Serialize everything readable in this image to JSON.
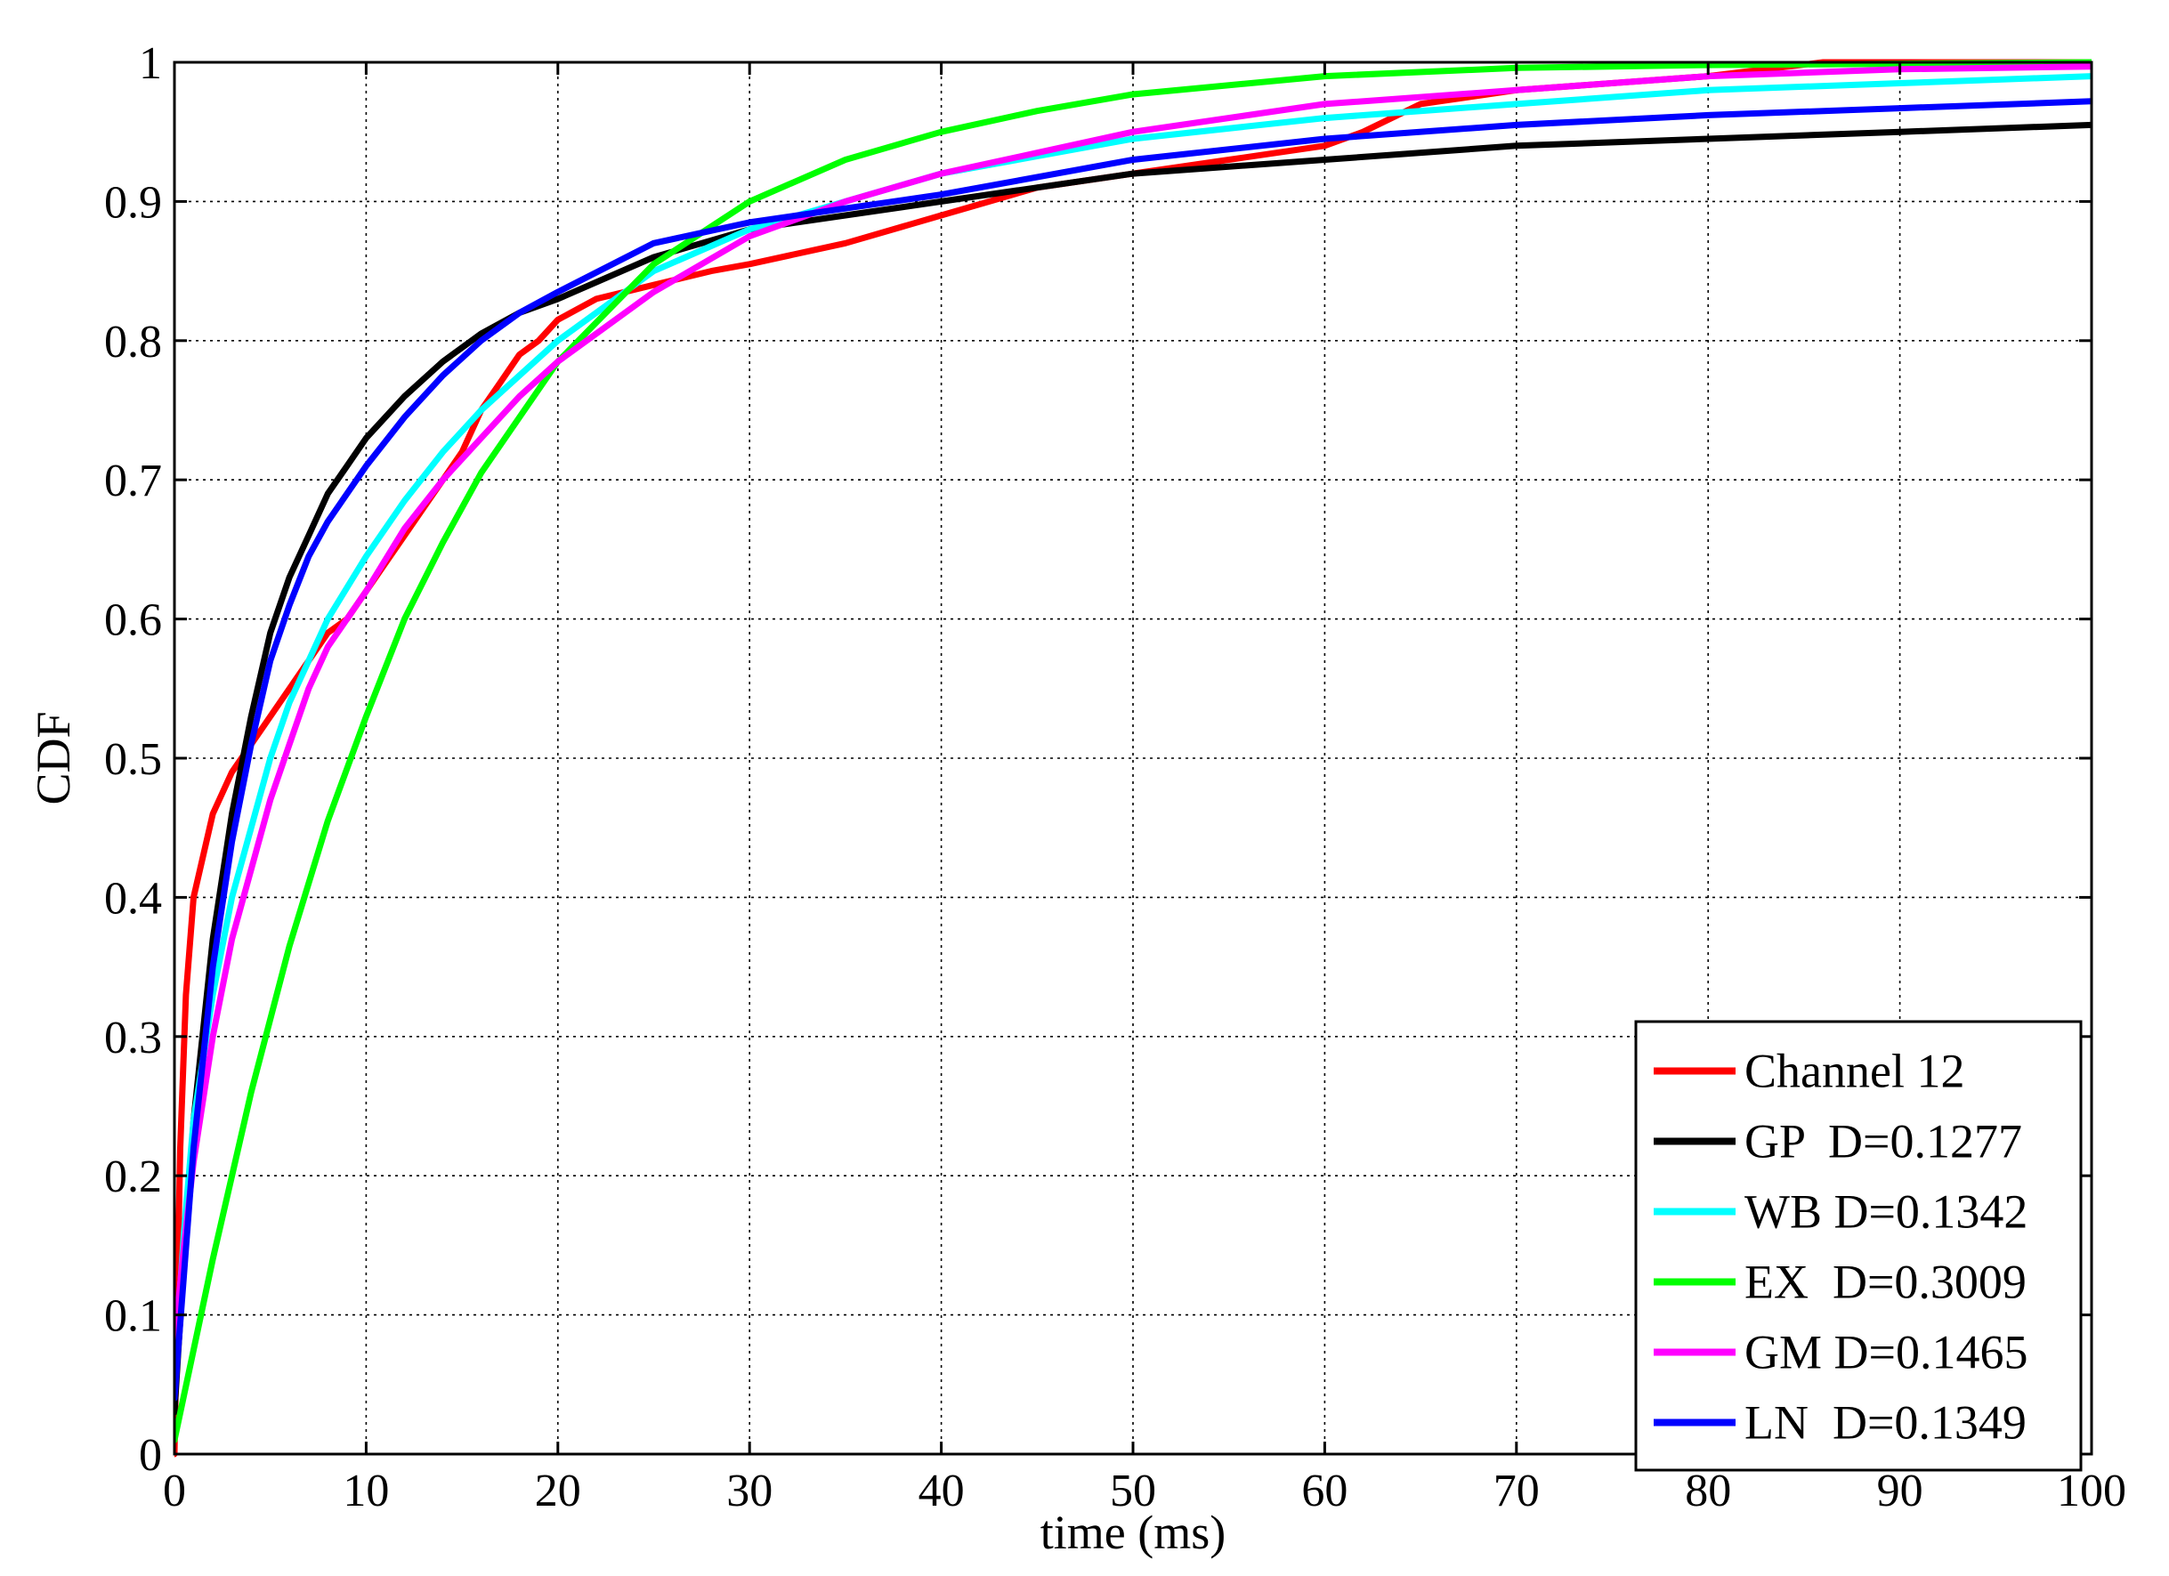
{
  "chart_data": {
    "type": "line",
    "title": "",
    "xlabel": "time (ms)",
    "ylabel": "CDF",
    "xlim": [
      0,
      100
    ],
    "ylim": [
      0,
      1
    ],
    "xticks": [
      0,
      10,
      20,
      30,
      40,
      50,
      60,
      70,
      80,
      90,
      100
    ],
    "yticks": [
      0,
      0.1,
      0.2,
      0.3,
      0.4,
      0.5,
      0.6,
      0.7,
      0.8,
      0.9,
      1
    ],
    "xtick_labels": [
      "0",
      "10",
      "20",
      "30",
      "40",
      "50",
      "60",
      "70",
      "80",
      "90",
      "100"
    ],
    "ytick_labels": [
      "0",
      "0.1",
      "0.2",
      "0.3",
      "0.4",
      "0.5",
      "0.6",
      "0.7",
      "0.8",
      "0.9",
      "1"
    ],
    "grid": true,
    "legend_position": "bottom-right",
    "series": [
      {
        "name": "Channel 12",
        "color": "#ff0000",
        "x": [
          0,
          0.1,
          0.3,
          0.6,
          1,
          1.5,
          2,
          3,
          4,
          5,
          6,
          7,
          8,
          9,
          10,
          11,
          12,
          13,
          14,
          15,
          16,
          17,
          18,
          19,
          20,
          22,
          25,
          28,
          30,
          35,
          40,
          45,
          50,
          55,
          60,
          62,
          65,
          70,
          80,
          86,
          90,
          95,
          100
        ],
        "y": [
          0.0,
          0.08,
          0.22,
          0.33,
          0.4,
          0.43,
          0.46,
          0.49,
          0.51,
          0.53,
          0.55,
          0.57,
          0.59,
          0.6,
          0.62,
          0.64,
          0.66,
          0.68,
          0.7,
          0.72,
          0.75,
          0.77,
          0.79,
          0.8,
          0.815,
          0.83,
          0.84,
          0.85,
          0.855,
          0.87,
          0.89,
          0.91,
          0.92,
          0.93,
          0.94,
          0.95,
          0.97,
          0.98,
          0.99,
          1.0,
          1.0,
          1.0,
          1.0
        ]
      },
      {
        "name": "GP  D=0.1277",
        "color": "#000000",
        "x": [
          0,
          0.5,
          1,
          2,
          3,
          4,
          5,
          6,
          7,
          8,
          9,
          10,
          12,
          14,
          16,
          18,
          20,
          25,
          30,
          35,
          40,
          50,
          60,
          70,
          80,
          90,
          100
        ],
        "y": [
          0.03,
          0.14,
          0.24,
          0.37,
          0.46,
          0.53,
          0.59,
          0.63,
          0.66,
          0.69,
          0.71,
          0.73,
          0.76,
          0.785,
          0.805,
          0.82,
          0.83,
          0.86,
          0.88,
          0.89,
          0.9,
          0.92,
          0.93,
          0.94,
          0.945,
          0.95,
          0.955
        ]
      },
      {
        "name": "WB D=0.1342",
        "color": "#00ffff",
        "x": [
          0,
          0.5,
          1,
          2,
          3,
          4,
          5,
          6,
          7,
          8,
          10,
          12,
          14,
          16,
          18,
          20,
          25,
          30,
          35,
          40,
          50,
          60,
          70,
          80,
          90,
          100
        ],
        "y": [
          0.06,
          0.16,
          0.24,
          0.33,
          0.4,
          0.45,
          0.5,
          0.54,
          0.57,
          0.6,
          0.645,
          0.685,
          0.72,
          0.75,
          0.775,
          0.8,
          0.85,
          0.88,
          0.9,
          0.92,
          0.945,
          0.96,
          0.97,
          0.98,
          0.985,
          0.99
        ]
      },
      {
        "name": "EX  D=0.3009",
        "color": "#00ff00",
        "x": [
          0,
          2,
          4,
          6,
          8,
          10,
          12,
          14,
          16,
          18,
          20,
          25,
          30,
          35,
          40,
          45,
          50,
          60,
          70,
          80,
          90,
          100
        ],
        "y": [
          0.01,
          0.14,
          0.26,
          0.365,
          0.455,
          0.53,
          0.6,
          0.655,
          0.705,
          0.745,
          0.785,
          0.855,
          0.9,
          0.93,
          0.95,
          0.965,
          0.977,
          0.99,
          0.996,
          0.998,
          0.999,
          1.0
        ]
      },
      {
        "name": "GM D=0.1465",
        "color": "#ff00ff",
        "x": [
          0,
          0.5,
          1,
          2,
          3,
          4,
          5,
          6,
          7,
          8,
          10,
          12,
          14,
          16,
          18,
          20,
          25,
          30,
          35,
          40,
          45,
          50,
          60,
          70,
          80,
          90,
          100
        ],
        "y": [
          0.08,
          0.15,
          0.21,
          0.3,
          0.37,
          0.42,
          0.47,
          0.51,
          0.55,
          0.58,
          0.62,
          0.665,
          0.7,
          0.73,
          0.76,
          0.785,
          0.835,
          0.875,
          0.9,
          0.92,
          0.935,
          0.95,
          0.97,
          0.98,
          0.99,
          0.995,
          0.997
        ]
      },
      {
        "name": "LN  D=0.1349",
        "color": "#0000ff",
        "x": [
          0,
          0.5,
          1,
          2,
          3,
          4,
          5,
          6,
          7,
          8,
          9,
          10,
          12,
          14,
          16,
          18,
          20,
          25,
          30,
          35,
          40,
          50,
          60,
          70,
          80,
          90,
          100
        ],
        "y": [
          0.04,
          0.13,
          0.22,
          0.35,
          0.44,
          0.51,
          0.57,
          0.61,
          0.645,
          0.67,
          0.69,
          0.71,
          0.745,
          0.775,
          0.8,
          0.82,
          0.835,
          0.87,
          0.885,
          0.895,
          0.905,
          0.93,
          0.945,
          0.955,
          0.962,
          0.967,
          0.972
        ]
      }
    ]
  }
}
